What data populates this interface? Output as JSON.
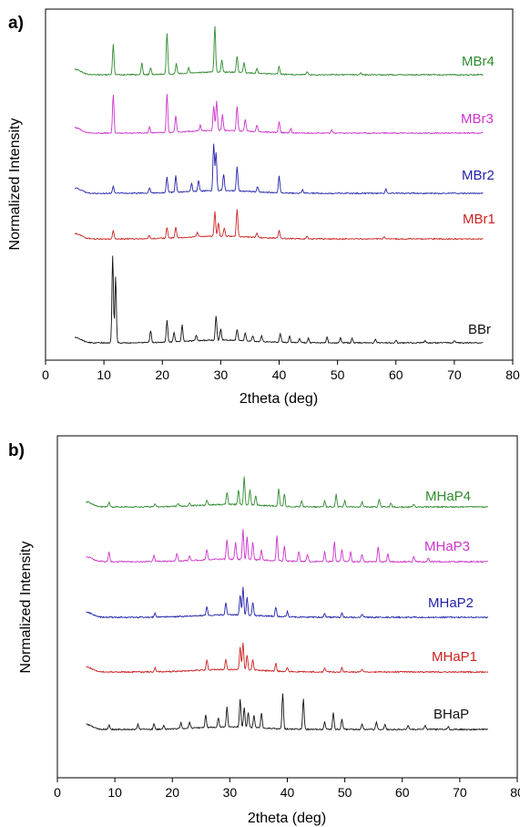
{
  "chart_data": [
    {
      "type": "line",
      "panel_label": "a)",
      "xlabel": "2theta (deg)",
      "ylabel": "Normalized Intensity",
      "xlim": [
        0,
        80
      ],
      "xticks": [
        0,
        10,
        20,
        30,
        40,
        50,
        60,
        70,
        80
      ],
      "x_range": [
        5,
        75
      ],
      "legend": "series names written at right end of each trace",
      "series": [
        {
          "name": "MBr4",
          "color": "#2e8b2e",
          "peaks": [
            [
              11.6,
              0.55
            ],
            [
              16.5,
              0.22
            ],
            [
              18.0,
              0.12
            ],
            [
              20.8,
              0.75
            ],
            [
              22.4,
              0.18
            ],
            [
              24.5,
              0.1
            ],
            [
              29.0,
              0.85
            ],
            [
              30.2,
              0.22
            ],
            [
              32.8,
              0.3
            ],
            [
              34.0,
              0.18
            ],
            [
              36.2,
              0.08
            ],
            [
              40.0,
              0.15
            ],
            [
              44.8,
              0.06
            ],
            [
              54.0,
              0.04
            ]
          ]
        },
        {
          "name": "MBr3",
          "color": "#cc33cc",
          "peaks": [
            [
              11.6,
              0.7
            ],
            [
              17.8,
              0.12
            ],
            [
              20.8,
              0.7
            ],
            [
              22.3,
              0.3
            ],
            [
              26.5,
              0.1
            ],
            [
              28.8,
              0.45
            ],
            [
              29.3,
              0.55
            ],
            [
              30.3,
              0.3
            ],
            [
              32.8,
              0.45
            ],
            [
              34.2,
              0.22
            ],
            [
              36.2,
              0.12
            ],
            [
              40.0,
              0.2
            ],
            [
              42.0,
              0.08
            ],
            [
              49.0,
              0.06
            ]
          ]
        },
        {
          "name": "MBr2",
          "color": "#2222aa",
          "peaks": [
            [
              11.6,
              0.12
            ],
            [
              17.8,
              0.1
            ],
            [
              20.8,
              0.28
            ],
            [
              22.3,
              0.3
            ],
            [
              25.0,
              0.15
            ],
            [
              26.2,
              0.2
            ],
            [
              28.8,
              0.85
            ],
            [
              29.2,
              0.7
            ],
            [
              30.5,
              0.3
            ],
            [
              32.8,
              0.45
            ],
            [
              36.3,
              0.1
            ],
            [
              40.0,
              0.3
            ],
            [
              44.0,
              0.06
            ],
            [
              58.3,
              0.08
            ]
          ]
        },
        {
          "name": "MBr1",
          "color": "#cc2222",
          "peaks": [
            [
              11.6,
              0.15
            ],
            [
              17.8,
              0.06
            ],
            [
              20.8,
              0.2
            ],
            [
              22.3,
              0.2
            ],
            [
              26.0,
              0.08
            ],
            [
              29.0,
              0.45
            ],
            [
              29.6,
              0.25
            ],
            [
              30.6,
              0.15
            ],
            [
              32.8,
              0.5
            ],
            [
              36.2,
              0.08
            ],
            [
              40.0,
              0.15
            ],
            [
              44.8,
              0.05
            ],
            [
              58.0,
              0.04
            ]
          ]
        },
        {
          "name": "BBr",
          "color": "#111111",
          "peaks": [
            [
              11.5,
              1.6
            ],
            [
              12.0,
              1.2
            ],
            [
              18.0,
              0.22
            ],
            [
              20.8,
              0.4
            ],
            [
              22.0,
              0.18
            ],
            [
              23.4,
              0.3
            ],
            [
              25.8,
              0.1
            ],
            [
              29.2,
              0.45
            ],
            [
              30.0,
              0.2
            ],
            [
              32.8,
              0.2
            ],
            [
              34.2,
              0.15
            ],
            [
              35.5,
              0.1
            ],
            [
              37.0,
              0.1
            ],
            [
              40.2,
              0.16
            ],
            [
              41.8,
              0.12
            ],
            [
              43.5,
              0.08
            ],
            [
              45.0,
              0.08
            ],
            [
              48.2,
              0.1
            ],
            [
              50.5,
              0.1
            ],
            [
              52.5,
              0.08
            ],
            [
              56.5,
              0.06
            ],
            [
              60.0,
              0.05
            ],
            [
              65.0,
              0.04
            ],
            [
              70.0,
              0.04
            ]
          ]
        }
      ]
    },
    {
      "type": "line",
      "panel_label": "b)",
      "xlabel": "2theta (deg)",
      "ylabel": "Normalized Intensity",
      "xlim": [
        0,
        80
      ],
      "xticks": [
        0,
        10,
        20,
        30,
        40,
        50,
        60,
        70,
        80
      ],
      "x_range": [
        5,
        75
      ],
      "legend": "series names written at right end of each trace",
      "series": [
        {
          "name": "MHaP4",
          "color": "#2e8b2e",
          "peaks": [
            [
              9.0,
              0.1
            ],
            [
              17.0,
              0.06
            ],
            [
              21.0,
              0.06
            ],
            [
              23.0,
              0.05
            ],
            [
              26.0,
              0.1
            ],
            [
              29.5,
              0.25
            ],
            [
              31.5,
              0.3
            ],
            [
              32.5,
              0.55
            ],
            [
              33.5,
              0.3
            ],
            [
              34.5,
              0.2
            ],
            [
              38.5,
              0.35
            ],
            [
              39.5,
              0.25
            ],
            [
              42.5,
              0.12
            ],
            [
              46.5,
              0.12
            ],
            [
              48.5,
              0.25
            ],
            [
              50.0,
              0.12
            ],
            [
              53.0,
              0.1
            ],
            [
              56.0,
              0.15
            ],
            [
              58.0,
              0.08
            ],
            [
              62.0,
              0.06
            ]
          ]
        },
        {
          "name": "MHaP3",
          "color": "#cc33cc",
          "peaks": [
            [
              9.0,
              0.2
            ],
            [
              16.8,
              0.12
            ],
            [
              20.8,
              0.15
            ],
            [
              23.0,
              0.1
            ],
            [
              26.0,
              0.2
            ],
            [
              29.5,
              0.4
            ],
            [
              31.0,
              0.35
            ],
            [
              32.3,
              0.6
            ],
            [
              33.0,
              0.45
            ],
            [
              34.0,
              0.35
            ],
            [
              35.5,
              0.2
            ],
            [
              38.2,
              0.5
            ],
            [
              39.5,
              0.3
            ],
            [
              42.0,
              0.2
            ],
            [
              43.5,
              0.15
            ],
            [
              46.5,
              0.2
            ],
            [
              48.2,
              0.4
            ],
            [
              49.5,
              0.25
            ],
            [
              51.0,
              0.2
            ],
            [
              53.0,
              0.15
            ],
            [
              55.8,
              0.3
            ],
            [
              57.5,
              0.15
            ],
            [
              62.0,
              0.1
            ],
            [
              64.5,
              0.08
            ]
          ]
        },
        {
          "name": "MHaP2",
          "color": "#2222aa",
          "peaks": [
            [
              17.0,
              0.08
            ],
            [
              26.0,
              0.18
            ],
            [
              29.3,
              0.25
            ],
            [
              31.8,
              0.4
            ],
            [
              32.3,
              0.55
            ],
            [
              33.0,
              0.35
            ],
            [
              34.0,
              0.25
            ],
            [
              38.0,
              0.18
            ],
            [
              40.0,
              0.1
            ],
            [
              46.5,
              0.08
            ],
            [
              49.5,
              0.1
            ],
            [
              53.0,
              0.06
            ]
          ]
        },
        {
          "name": "MHaP1",
          "color": "#cc2222",
          "peaks": [
            [
              17.0,
              0.08
            ],
            [
              26.0,
              0.2
            ],
            [
              29.3,
              0.2
            ],
            [
              31.8,
              0.45
            ],
            [
              32.3,
              0.55
            ],
            [
              33.0,
              0.3
            ],
            [
              34.0,
              0.22
            ],
            [
              38.0,
              0.15
            ],
            [
              40.0,
              0.08
            ],
            [
              46.5,
              0.08
            ],
            [
              49.5,
              0.08
            ],
            [
              53.0,
              0.05
            ]
          ]
        },
        {
          "name": "BHaP",
          "color": "#111111",
          "peaks": [
            [
              9.0,
              0.1
            ],
            [
              14.0,
              0.1
            ],
            [
              16.8,
              0.1
            ],
            [
              18.5,
              0.08
            ],
            [
              21.5,
              0.12
            ],
            [
              23.0,
              0.12
            ],
            [
              25.8,
              0.25
            ],
            [
              28.0,
              0.18
            ],
            [
              29.5,
              0.4
            ],
            [
              31.8,
              0.55
            ],
            [
              32.5,
              0.4
            ],
            [
              33.2,
              0.3
            ],
            [
              34.2,
              0.25
            ],
            [
              35.5,
              0.3
            ],
            [
              39.2,
              0.7
            ],
            [
              42.8,
              0.6
            ],
            [
              46.5,
              0.15
            ],
            [
              48.0,
              0.35
            ],
            [
              49.5,
              0.2
            ],
            [
              53.0,
              0.12
            ],
            [
              55.5,
              0.15
            ],
            [
              57.0,
              0.1
            ],
            [
              61.0,
              0.08
            ],
            [
              64.0,
              0.08
            ],
            [
              68.0,
              0.05
            ]
          ]
        }
      ]
    }
  ]
}
